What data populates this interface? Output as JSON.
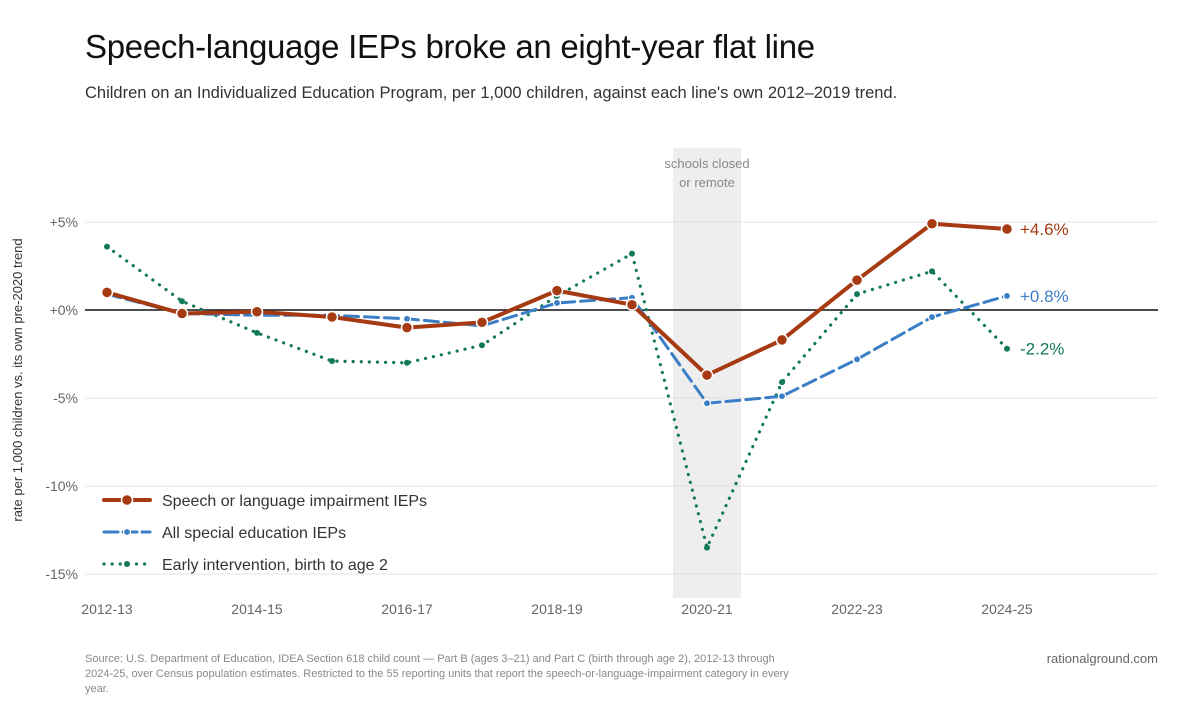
{
  "title": "Speech-language IEPs broke an eight-year flat line",
  "subtitle": "Children on an Individualized Education Program, per 1,000 children, against each line's own 2012–2019 trend.",
  "footer": {
    "source": "Source: U.S. Department of Education, IDEA Section 618 child count — Part B (ages 3–21) and Part C (birth through age 2), 2012-13 through 2024-25, over Census population estimates. Restricted to the 55 reporting units that report the speech-or-language-impairment category in every year.",
    "brand": "rationalground.com"
  },
  "chart_data": {
    "type": "line",
    "title": "Speech-language IEPs broke an eight-year flat line",
    "ylabel": "rate per 1,000 children vs. its own pre-2020 trend",
    "xlabel": "",
    "ylim": [
      -15.5,
      6.5
    ],
    "yticks": [
      5,
      0,
      -5,
      -10,
      -15
    ],
    "ytick_labels": [
      "+5%",
      "+0%",
      "-5%",
      "-10%",
      "-15%"
    ],
    "x": [
      "2012-13",
      "2013-14",
      "2014-15",
      "2015-16",
      "2016-17",
      "2017-18",
      "2018-19",
      "2019-20",
      "2020-21",
      "2021-22",
      "2022-23",
      "2023-24",
      "2024-25"
    ],
    "x_tick_labels": [
      "2012-13",
      "2014-15",
      "2016-17",
      "2018-19",
      "2020-21",
      "2022-23",
      "2024-25"
    ],
    "grid": "horizontal",
    "legend_position": "bottom-left",
    "shaded_region": {
      "from": "2020-21",
      "label_line1": "schools closed",
      "label_line2": "or remote",
      "color": "#eeeeee"
    },
    "series": [
      {
        "name": "Speech or language impairment IEPs",
        "color": "#a63a12",
        "style": "solid",
        "values": [
          1.0,
          -0.2,
          -0.1,
          -0.4,
          -1.0,
          -0.7,
          1.1,
          0.3,
          -3.7,
          -1.7,
          1.7,
          4.9,
          4.6
        ],
        "end_label": "+4.6%"
      },
      {
        "name": "All special education IEPs",
        "color": "#3a7ec6",
        "style": "dashed",
        "values": [
          0.9,
          -0.2,
          -0.3,
          -0.3,
          -0.5,
          -0.9,
          0.4,
          0.7,
          -5.3,
          -4.9,
          -2.8,
          -0.4,
          0.8
        ],
        "end_label": "+0.8%"
      },
      {
        "name": "Early intervention, birth to age 2",
        "color": "#127a56",
        "style": "dotted",
        "values": [
          3.6,
          0.5,
          -1.3,
          -2.9,
          -3.0,
          -2.0,
          0.8,
          3.2,
          -13.5,
          -4.1,
          0.9,
          2.2,
          -2.2
        ],
        "end_label": "-2.2%"
      }
    ]
  }
}
